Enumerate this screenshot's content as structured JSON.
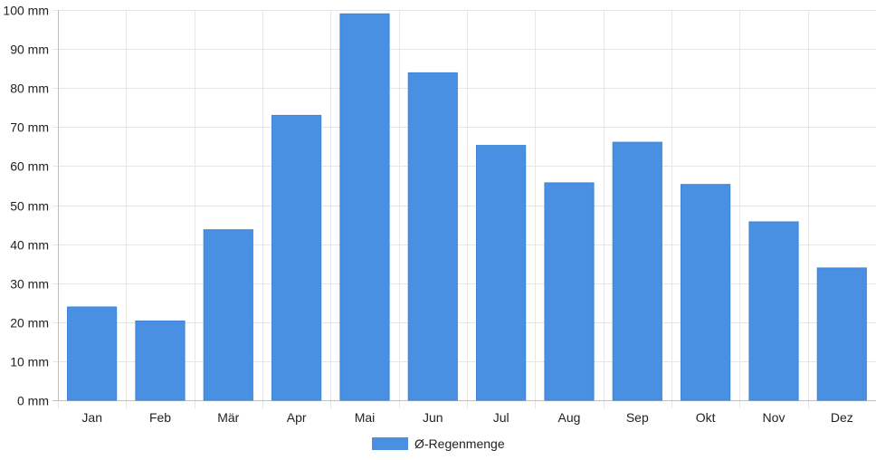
{
  "chart_data": {
    "type": "bar",
    "categories": [
      "Jan",
      "Feb",
      "Mär",
      "Apr",
      "Mai",
      "Jun",
      "Jul",
      "Aug",
      "Sep",
      "Okt",
      "Nov",
      "Dez"
    ],
    "series": [
      {
        "name": "Ø-Regenmenge",
        "color": "#4a90e2",
        "values": [
          23.9,
          20.3,
          43.7,
          73.0,
          99.0,
          83.9,
          65.3,
          55.7,
          66.1,
          55.3,
          45.7,
          33.9
        ]
      }
    ],
    "y_tick_values": [
      0,
      10,
      20,
      30,
      40,
      50,
      60,
      70,
      80,
      90,
      100
    ],
    "y_unit": "mm",
    "ylim": [
      0,
      100
    ],
    "title": "",
    "xlabel": "",
    "ylabel": "",
    "grid": true,
    "legend_position": "bottom-center"
  }
}
